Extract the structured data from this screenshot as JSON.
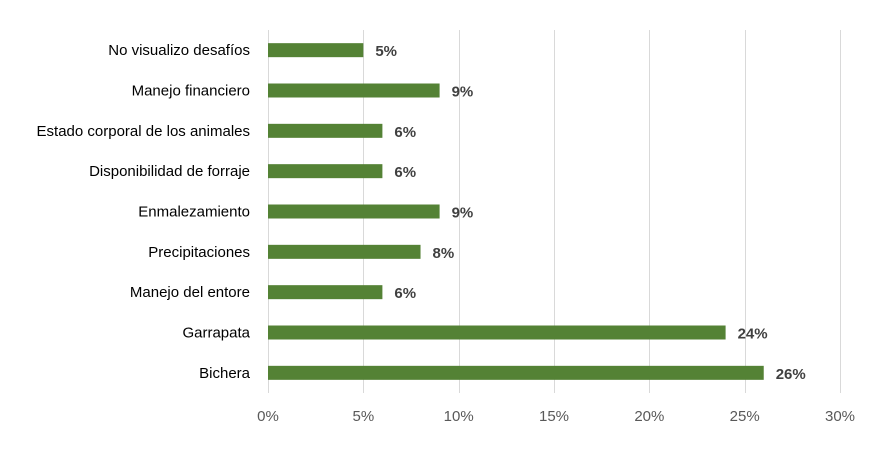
{
  "chart_data": {
    "type": "bar",
    "orientation": "horizontal",
    "categories": [
      "No visualizo desafíos",
      "Manejo financiero",
      "Estado corporal de los animales",
      "Disponibilidad de forraje",
      "Enmalezamiento",
      "Precipitaciones",
      "Manejo del entore",
      "Garrapata",
      "Bichera"
    ],
    "values": [
      5,
      9,
      6,
      6,
      9,
      8,
      6,
      24,
      26
    ],
    "data_labels": [
      "5%",
      "9%",
      "6%",
      "6%",
      "9%",
      "8%",
      "6%",
      "24%",
      "26%"
    ],
    "xlim": [
      0,
      30
    ],
    "x_ticks": [
      0,
      5,
      10,
      15,
      20,
      25,
      30
    ],
    "x_tick_labels": [
      "0%",
      "5%",
      "10%",
      "15%",
      "20%",
      "25%",
      "30%"
    ],
    "title": "",
    "xlabel": "",
    "ylabel": "",
    "grid": "vertical",
    "legend": "none",
    "bar_color": "#548235"
  }
}
